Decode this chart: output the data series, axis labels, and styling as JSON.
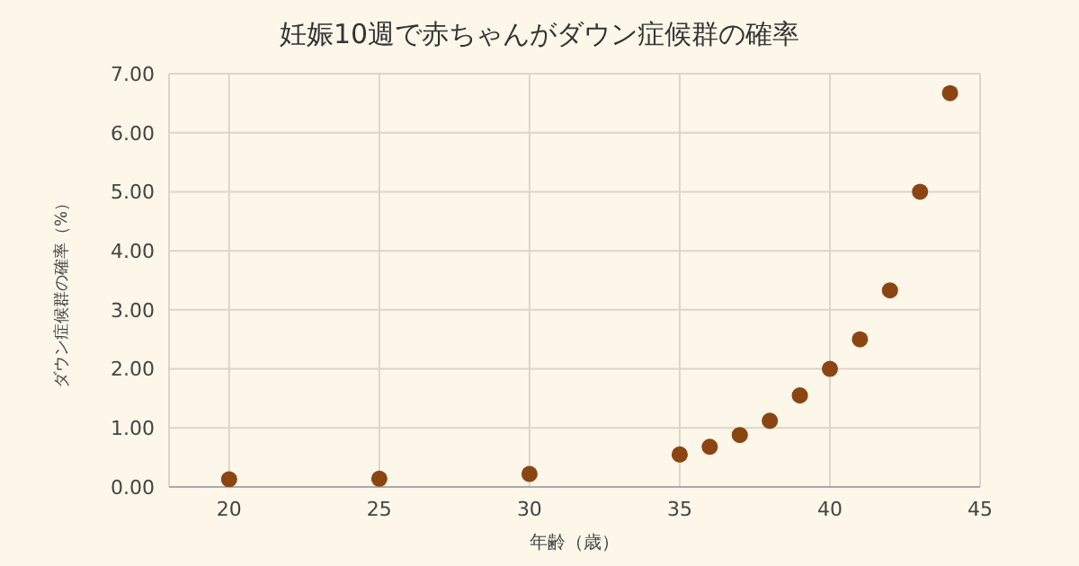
{
  "chart_data": {
    "type": "scatter",
    "title": "妊娠10週で赤ちゃんがダウン症候群の確率",
    "xlabel": "年齢（歳）",
    "ylabel": "ダウン症候群の確率（%）",
    "x": [
      20,
      25,
      30,
      35,
      36,
      37,
      38,
      39,
      40,
      41,
      42,
      43,
      44
    ],
    "series": [
      {
        "color": "#8b4513",
        "values": [
          0.13,
          0.14,
          0.22,
          0.55,
          0.68,
          0.88,
          1.12,
          1.55,
          2.0,
          2.5,
          3.33,
          5.0,
          6.67
        ]
      }
    ],
    "xlim": [
      18,
      45
    ],
    "xticks": [
      20,
      25,
      30,
      35,
      40,
      45
    ],
    "ylim": [
      0,
      7
    ],
    "yticks": [
      {
        "value": 0,
        "label": "0.00"
      },
      {
        "value": 1,
        "label": "1.00"
      },
      {
        "value": 2,
        "label": "2.00"
      },
      {
        "value": 3,
        "label": "3.00"
      },
      {
        "value": 4,
        "label": "4.00"
      },
      {
        "value": 5,
        "label": "5.00"
      },
      {
        "value": 6,
        "label": "6.00"
      },
      {
        "value": 7,
        "label": "7.00"
      }
    ],
    "grid": true,
    "marker": "circle"
  }
}
